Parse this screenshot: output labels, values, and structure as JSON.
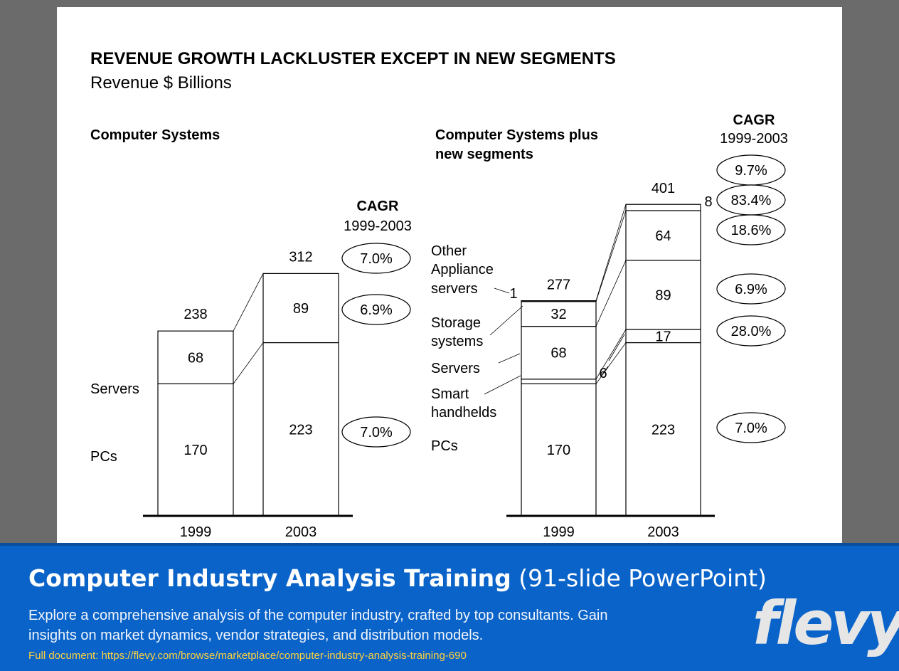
{
  "colors": {
    "footer_bg": "#0a63c9",
    "slide_bg": "#ffffff",
    "page_bg": "#6b6b6b",
    "link": "#ffd23c"
  },
  "footer": {
    "title_bold": "Computer Industry Analysis Training",
    "title_rest": " (91-slide PowerPoint)",
    "description": "Explore a comprehensive analysis of the computer industry, crafted by top consultants. Gain insights on market dynamics, vendor strategies, and distribution models.",
    "link": "Full document: https://flevy.com/browse/marketplace/computer-industry-analysis-training-690",
    "logo": "flevy"
  },
  "chart_data": {
    "title": "REVENUE GROWTH LACKLUSTER EXCEPT IN NEW SEGMENTS",
    "subtitle": "Revenue $ Billions",
    "charts": [
      {
        "type": "bar",
        "stacked": true,
        "heading": "Computer Systems",
        "categories": [
          "1999",
          "2003"
        ],
        "series": [
          {
            "name": "PCs",
            "values": [
              170,
              223
            ]
          },
          {
            "name": "Servers",
            "values": [
              68,
              89
            ]
          }
        ],
        "totals": [
          238,
          312
        ],
        "cagr_header": "CAGR",
        "cagr_period": "1999-2003",
        "cagr": {
          "total": "7.0%",
          "Servers": "6.9%",
          "PCs": "7.0%"
        }
      },
      {
        "type": "bar",
        "stacked": true,
        "heading": "Computer Systems plus new segments",
        "categories": [
          "1999",
          "2003"
        ],
        "series": [
          {
            "name": "PCs",
            "values": [
              170,
              223
            ]
          },
          {
            "name": "Smart handhelds",
            "values": [
              6,
              17
            ]
          },
          {
            "name": "Servers",
            "values": [
              68,
              89
            ]
          },
          {
            "name": "Storage systems",
            "values": [
              32,
              64
            ]
          },
          {
            "name": "Other Appliance servers",
            "values": [
              1,
              8
            ]
          }
        ],
        "totals": [
          277,
          401
        ],
        "series_labels": [
          "Other",
          "Appliance",
          "servers",
          "Storage",
          "systems",
          "Servers",
          "Smart",
          "handhelds",
          "PCs"
        ],
        "cagr_header": "CAGR",
        "cagr_period": "1999-2003",
        "cagr": {
          "total": "9.7%",
          "Other Appliance servers": "83.4%",
          "Storage systems": "18.6%",
          "Servers": "6.9%",
          "Smart handhelds": "28.0%",
          "PCs": "7.0%"
        }
      }
    ]
  }
}
